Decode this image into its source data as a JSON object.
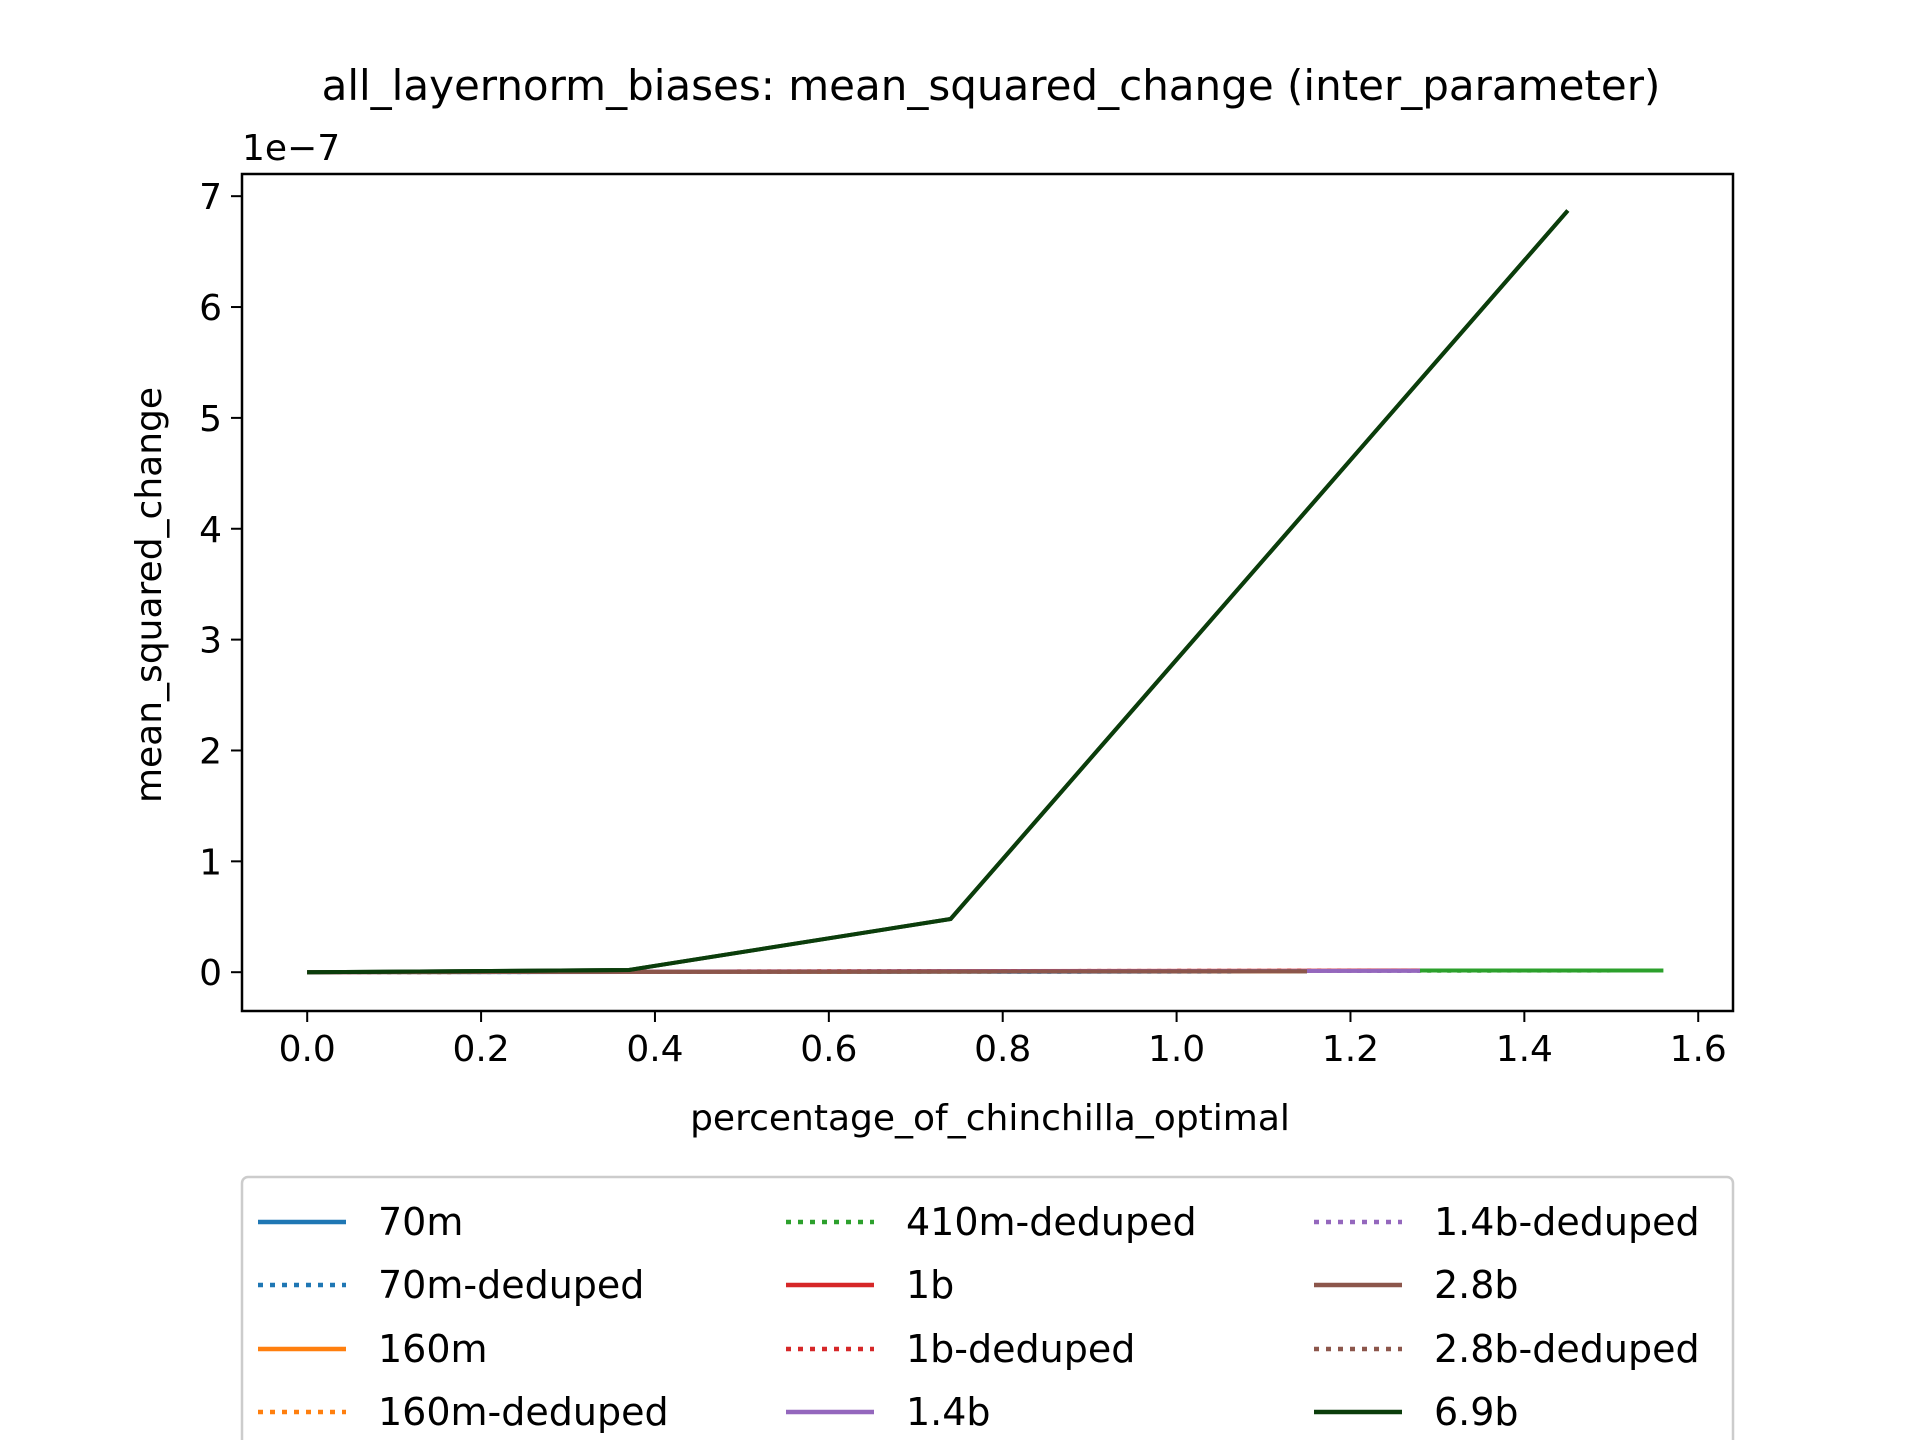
{
  "chart_data": {
    "type": "line",
    "title": "all_layernorm_biases: mean_squared_change (inter_parameter)",
    "xlabel": "percentage_of_chinchilla_optimal",
    "ylabel": "mean_squared_change",
    "y_offset_label": "1e−7",
    "y_scale": 1e-07,
    "xlim": [
      -0.075,
      1.64
    ],
    "ylim": [
      -0.35,
      7.2
    ],
    "x_ticks": [
      0.0,
      0.2,
      0.4,
      0.6,
      0.8,
      1.0,
      1.2,
      1.4,
      1.6
    ],
    "x_tick_labels": [
      "0.0",
      "0.2",
      "0.4",
      "0.6",
      "0.8",
      "1.0",
      "1.2",
      "1.4",
      "1.6"
    ],
    "y_ticks": [
      0,
      1,
      2,
      3,
      4,
      5,
      6,
      7
    ],
    "y_tick_labels": [
      "0",
      "1",
      "2",
      "3",
      "4",
      "5",
      "6",
      "7"
    ],
    "grid": false,
    "legend_placement": "below",
    "series": [
      {
        "name": "70m",
        "color": "#1f77b4",
        "style": "solid",
        "x": [
          0.0,
          0.37,
          0.74,
          1.15
        ],
        "y": [
          0.0,
          0.002,
          0.004,
          0.006
        ]
      },
      {
        "name": "70m-deduped",
        "color": "#1f77b4",
        "style": "dotted",
        "x": [
          0.0,
          0.37,
          0.74,
          1.15
        ],
        "y": [
          0.0,
          0.002,
          0.004,
          0.006
        ]
      },
      {
        "name": "160m",
        "color": "#ff7f0e",
        "style": "solid",
        "x": [
          0.0,
          0.37,
          0.74,
          1.15
        ],
        "y": [
          0.0,
          0.003,
          0.005,
          0.008
        ]
      },
      {
        "name": "160m-deduped",
        "color": "#ff7f0e",
        "style": "dotted",
        "x": [
          0.0,
          0.37,
          0.74,
          1.15
        ],
        "y": [
          0.0,
          0.003,
          0.005,
          0.008
        ]
      },
      {
        "name": "410m-deduped",
        "color": "#2ca02c",
        "style": "dotted",
        "x": [
          0.0,
          0.37,
          0.74,
          1.15,
          1.56
        ],
        "y": [
          0.0,
          0.004,
          0.008,
          0.012,
          0.015
        ]
      },
      {
        "name": "1b",
        "color": "#d62728",
        "style": "solid",
        "x": [
          0.0,
          0.37,
          0.74,
          1.28
        ],
        "y": [
          0.0,
          0.005,
          0.01,
          0.015
        ]
      },
      {
        "name": "1b-deduped",
        "color": "#d62728",
        "style": "dotted",
        "x": [
          0.0,
          0.37,
          0.74,
          1.28
        ],
        "y": [
          0.0,
          0.005,
          0.01,
          0.015
        ]
      },
      {
        "name": "1.4b",
        "color": "#9467bd",
        "style": "solid",
        "x": [
          0.0,
          0.37,
          0.74,
          1.28
        ],
        "y": [
          0.0,
          0.004,
          0.008,
          0.012
        ]
      },
      {
        "name": "1.4b-deduped",
        "color": "#9467bd",
        "style": "dotted",
        "x": [
          0.0,
          0.37,
          0.74,
          1.28
        ],
        "y": [
          0.0,
          0.004,
          0.008,
          0.012
        ]
      },
      {
        "name": "2.8b",
        "color": "#8c564b",
        "style": "solid",
        "x": [
          0.0,
          0.37,
          0.74,
          1.15
        ],
        "y": [
          0.0,
          0.003,
          0.006,
          0.009
        ]
      },
      {
        "name": "2.8b-deduped",
        "color": "#8c564b",
        "style": "dotted",
        "x": [
          0.0,
          0.37,
          0.74,
          1.15
        ],
        "y": [
          0.0,
          0.003,
          0.006,
          0.009
        ]
      },
      {
        "name": "6.9b",
        "color": "#0b3d0b",
        "style": "solid",
        "x": [
          0.0,
          0.37,
          0.74,
          1.45
        ],
        "y": [
          0.0,
          0.02,
          0.48,
          6.87
        ]
      }
    ],
    "extra_segments": [
      {
        "name": "410m-deduped-solid",
        "color": "#2ca02c",
        "style": "solid",
        "x": [
          1.28,
          1.56
        ],
        "y": [
          0.015,
          0.015
        ]
      }
    ]
  }
}
